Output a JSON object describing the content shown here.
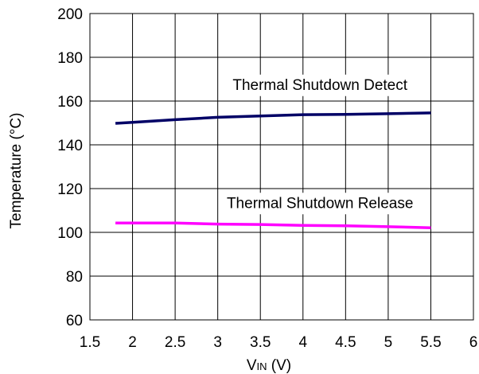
{
  "chart_data": {
    "type": "line",
    "title": "",
    "xlabel": "VIN (V)",
    "xlabel_main": "V",
    "xlabel_sub": "IN",
    "xlabel_rest": " (V)",
    "ylabel": "Temperature (°C)",
    "xlim": [
      1.5,
      6
    ],
    "ylim": [
      60,
      200
    ],
    "xticks": [
      1.5,
      2,
      2.5,
      3,
      3.5,
      4,
      4.5,
      5,
      5.5,
      6
    ],
    "xtick_labels": [
      "1.5",
      "2",
      "2.5",
      "3",
      "3.5",
      "4",
      "4.5",
      "5",
      "5.5",
      "6"
    ],
    "yticks": [
      60,
      80,
      100,
      120,
      140,
      160,
      180,
      200
    ],
    "ytick_labels": [
      "60",
      "80",
      "100",
      "120",
      "140",
      "160",
      "180",
      "200"
    ],
    "grid": true,
    "legend": false,
    "series": [
      {
        "color": "#000066",
        "x": [
          1.8,
          2.0,
          2.5,
          3.0,
          3.5,
          4.0,
          4.5,
          5.0,
          5.5
        ],
        "y": [
          149.8,
          150.3,
          151.5,
          152.6,
          153.2,
          153.8,
          153.9,
          154.2,
          154.6
        ]
      },
      {
        "color": "#ff00ff",
        "x": [
          1.8,
          2.0,
          2.5,
          3.0,
          3.5,
          4.0,
          4.5,
          5.0,
          5.5
        ],
        "y": [
          104.3,
          104.3,
          104.3,
          103.8,
          103.6,
          103.2,
          103.0,
          102.6,
          102.1
        ]
      }
    ],
    "annotations": [
      {
        "text": "Thermal Shutdown Detect",
        "x": 4.2,
        "y": 167
      },
      {
        "text": "Thermal Shutdown Release",
        "x": 4.2,
        "y": 113
      }
    ]
  }
}
